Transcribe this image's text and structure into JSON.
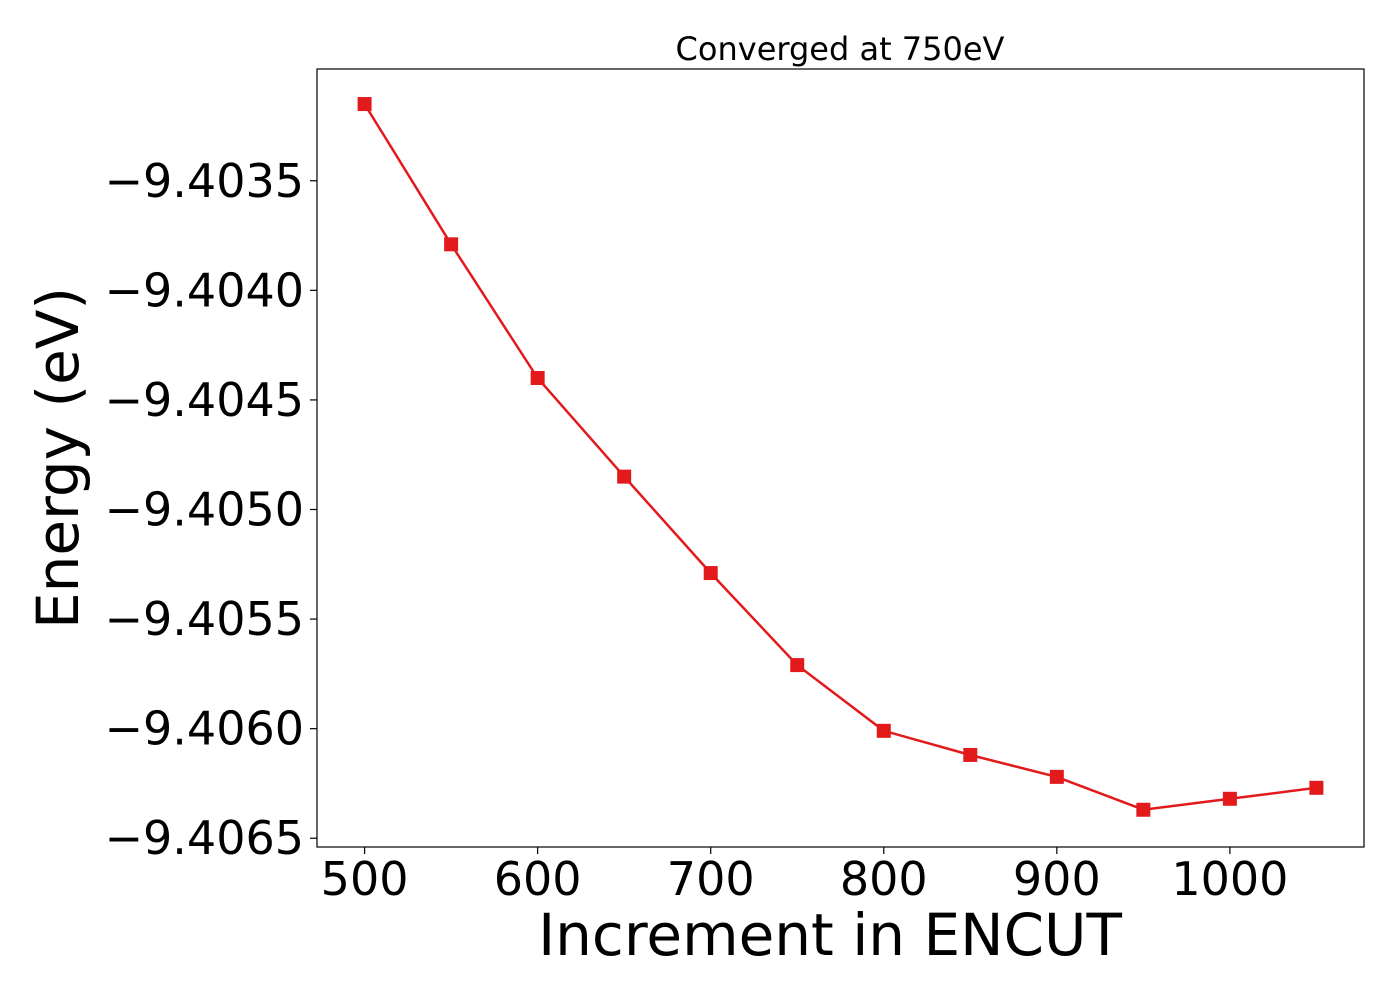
{
  "chart_data": {
    "type": "line",
    "title": "Converged at 750eV",
    "xlabel": "Increment in ENCUT",
    "ylabel": "Energy (eV)",
    "xlim": [
      472.5,
      1077.5
    ],
    "ylim": [
      -9.40654,
      -9.40299
    ],
    "x_ticks": [
      500,
      600,
      700,
      800,
      900,
      1000
    ],
    "x_tick_labels": [
      "500",
      "600",
      "700",
      "800",
      "900",
      "1000"
    ],
    "y_ticks": [
      -9.4035,
      -9.404,
      -9.4045,
      -9.405,
      -9.4055,
      -9.406,
      -9.4065
    ],
    "y_tick_labels": [
      "−9.4035",
      "−9.4040",
      "−9.4045",
      "−9.4050",
      "−9.4055",
      "−9.4060",
      "−9.4065"
    ],
    "grid": false,
    "series": [
      {
        "color": "#e31a1c",
        "marker": "square",
        "x": [
          500,
          550,
          600,
          650,
          700,
          750,
          800,
          850,
          900,
          950,
          1000,
          1050
        ],
        "y": [
          -9.40315,
          -9.40379,
          -9.4044,
          -9.40485,
          -9.40529,
          -9.40571,
          -9.40601,
          -9.40612,
          -9.40622,
          -9.40637,
          -9.40632,
          -9.40627
        ]
      }
    ]
  }
}
